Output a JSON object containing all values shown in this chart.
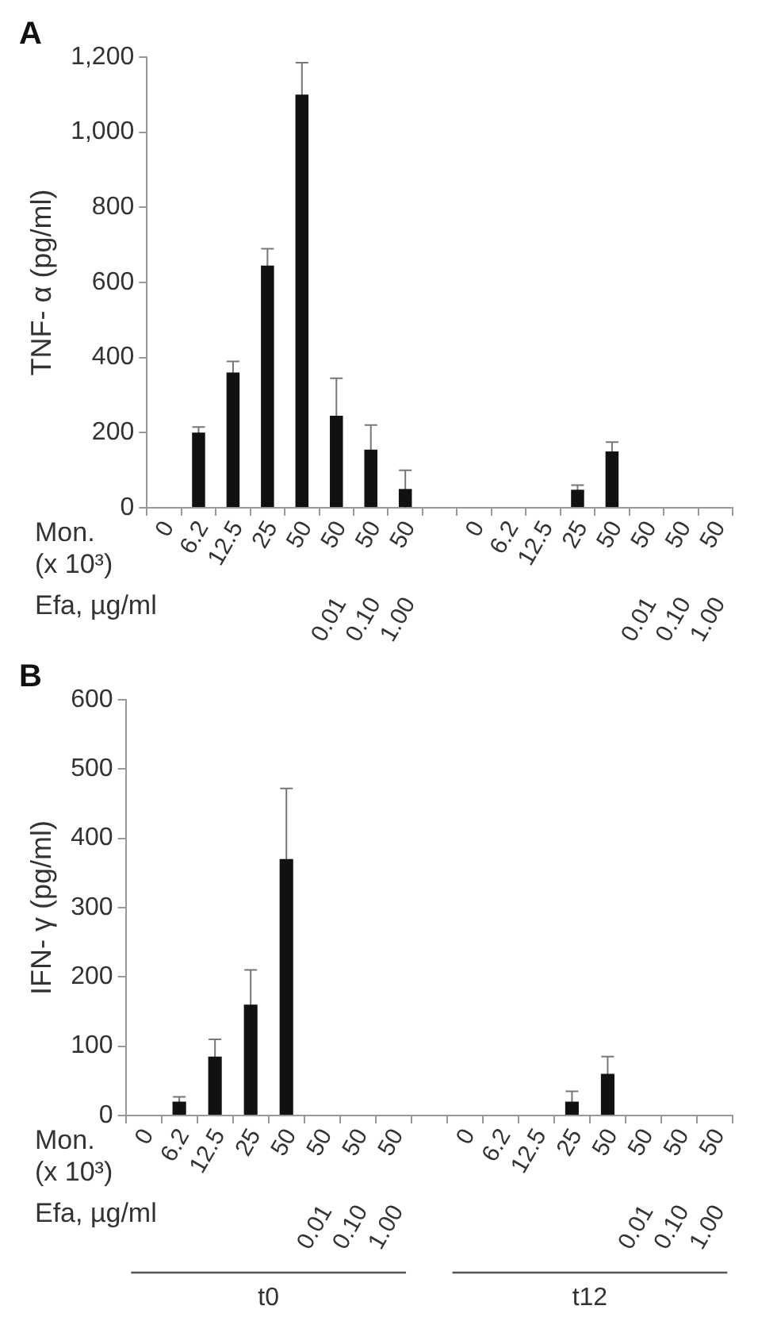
{
  "chart_data": [
    {
      "type": "bar",
      "title": "A",
      "ylabel": "TNF- α (pg/ml)",
      "categories": [
        "0",
        "6.2",
        "12.5",
        "25",
        "50",
        "50\n0.01",
        "50\n0.10",
        "50\n1.00",
        null,
        "0",
        "6.2",
        "12.5",
        "25",
        "50",
        "50\n0.01",
        "50\n0.10",
        "50\n1.00"
      ],
      "values": [
        0,
        200,
        360,
        645,
        1100,
        245,
        155,
        50,
        null,
        0,
        0,
        0,
        48,
        150,
        0,
        0,
        0
      ],
      "errors": [
        null,
        15,
        30,
        45,
        85,
        100,
        65,
        50,
        null,
        null,
        null,
        null,
        12,
        25,
        null,
        null,
        null
      ],
      "color": "#111111",
      "ylim": [
        0,
        1200
      ],
      "yticks": [
        0,
        200,
        400,
        600,
        800,
        {
          "value": 1000,
          "label": "1,000"
        },
        {
          "value": 1200,
          "label": "1,200"
        }
      ],
      "grid": false,
      "annotations": [
        "Mon. (x 10³)",
        "Efa, µg/ml"
      ]
    },
    {
      "type": "bar",
      "title": "B",
      "ylabel": "IFN- γ (pg/ml)",
      "categories": [
        "0",
        "6.2",
        "12.5",
        "25",
        "50",
        "50\n0.01",
        "50\n0.10",
        "50\n1.00",
        null,
        "0",
        "6.2",
        "12.5",
        "25",
        "50",
        "50\n0.01",
        "50\n0.10",
        "50\n1.00"
      ],
      "values": [
        0,
        20,
        85,
        160,
        370,
        0,
        0,
        0,
        null,
        0,
        0,
        0,
        20,
        60,
        0,
        0,
        0
      ],
      "errors": [
        null,
        7,
        25,
        50,
        102,
        null,
        null,
        null,
        null,
        null,
        null,
        null,
        15,
        25,
        null,
        null,
        null
      ],
      "color": "#111111",
      "ylim": [
        0,
        600
      ],
      "yticks": [
        0,
        100,
        200,
        300,
        400,
        500,
        600
      ],
      "grid": false,
      "annotations": [
        "Mon. (x 10³)",
        "Efa, µg/ml",
        "t0",
        "t12"
      ]
    }
  ]
}
